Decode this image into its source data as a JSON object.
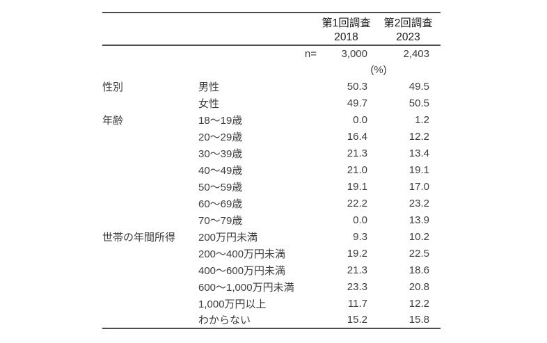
{
  "table": {
    "header": {
      "surveys": [
        {
          "name": "第1回調査",
          "year": "2018"
        },
        {
          "name": "第2回調査",
          "year": "2023"
        }
      ]
    },
    "n_row": {
      "label": "n=",
      "values": [
        "3,000",
        "2,403"
      ]
    },
    "percent_label": "(%)",
    "groups": [
      {
        "category": "性別",
        "rows": [
          {
            "label": "男性",
            "v2018": "50.3",
            "v2023": "49.5"
          },
          {
            "label": "女性",
            "v2018": "49.7",
            "v2023": "50.5"
          }
        ]
      },
      {
        "category": "年齢",
        "rows": [
          {
            "label": "18〜19歳",
            "v2018": "0.0",
            "v2023": "1.2"
          },
          {
            "label": "20〜29歳",
            "v2018": "16.4",
            "v2023": "12.2"
          },
          {
            "label": "30〜39歳",
            "v2018": "21.3",
            "v2023": "13.4"
          },
          {
            "label": "40〜49歳",
            "v2018": "21.0",
            "v2023": "19.1"
          },
          {
            "label": "50〜59歳",
            "v2018": "19.1",
            "v2023": "17.0"
          },
          {
            "label": "60〜69歳",
            "v2018": "22.2",
            "v2023": "23.2"
          },
          {
            "label": "70〜79歳",
            "v2018": "0.0",
            "v2023": "13.9"
          }
        ]
      },
      {
        "category": "世帯の年間所得",
        "rows": [
          {
            "label": "200万円未満",
            "v2018": "9.3",
            "v2023": "10.2"
          },
          {
            "label": "200〜400万円未満",
            "v2018": "19.2",
            "v2023": "22.5"
          },
          {
            "label": "400〜600万円未満",
            "v2018": "21.3",
            "v2023": "18.6"
          },
          {
            "label": "600〜1,000万円未満",
            "v2018": "23.3",
            "v2023": "20.8"
          },
          {
            "label": "1,000万円以上",
            "v2018": "11.7",
            "v2023": "12.2"
          },
          {
            "label": "わからない",
            "v2018": "15.2",
            "v2023": "15.8"
          }
        ]
      }
    ]
  }
}
